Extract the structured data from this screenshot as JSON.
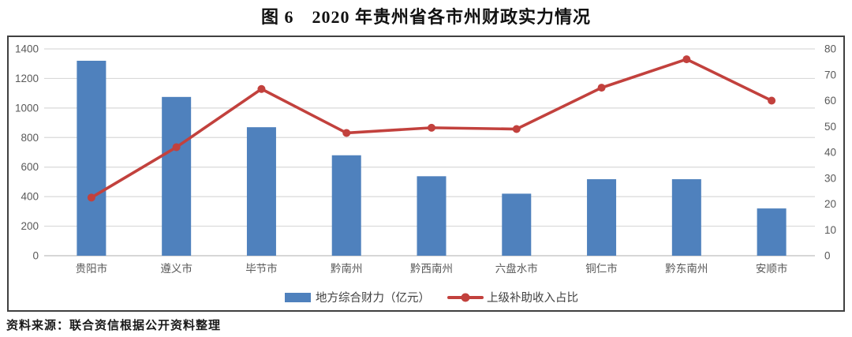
{
  "title": "图 6　2020 年贵州省各市州财政实力情况",
  "source": "资料来源：联合资信根据公开资料整理",
  "colors": {
    "bar": "#4F81BD",
    "line": "#C2413D",
    "grid": "#D9D9D9",
    "axis_line": "#BFBFBF",
    "axis_text": "#595959",
    "legend_text": "#404040",
    "frame": "#404040"
  },
  "chart_data": {
    "type": "bar",
    "subtype": "combo-bar-line",
    "title": "图 6　2020 年贵州省各市州财政实力情况",
    "categories": [
      "贵阳市",
      "遵义市",
      "毕节市",
      "黔南州",
      "黔西南州",
      "六盘水市",
      "铜仁市",
      "黔东南州",
      "安顺市"
    ],
    "series": [
      {
        "name": "地方综合财力（亿元）",
        "type": "bar",
        "axis": "left",
        "values": [
          1320,
          1075,
          870,
          680,
          538,
          420,
          518,
          518,
          320
        ]
      },
      {
        "name": "上级补助收入占比",
        "type": "line",
        "axis": "right",
        "values": [
          22.5,
          42,
          64.5,
          47.5,
          49.5,
          49,
          65,
          76,
          60
        ]
      }
    ],
    "left_axis": {
      "min": 0,
      "max": 1400,
      "step": 200,
      "ticks": [
        0,
        200,
        400,
        600,
        800,
        1000,
        1200,
        1400
      ]
    },
    "right_axis": {
      "min": 0,
      "max": 80,
      "step": 10,
      "ticks": [
        0,
        10,
        20,
        30,
        40,
        50,
        60,
        70,
        80
      ]
    },
    "grid": true,
    "legend_position": "bottom"
  }
}
